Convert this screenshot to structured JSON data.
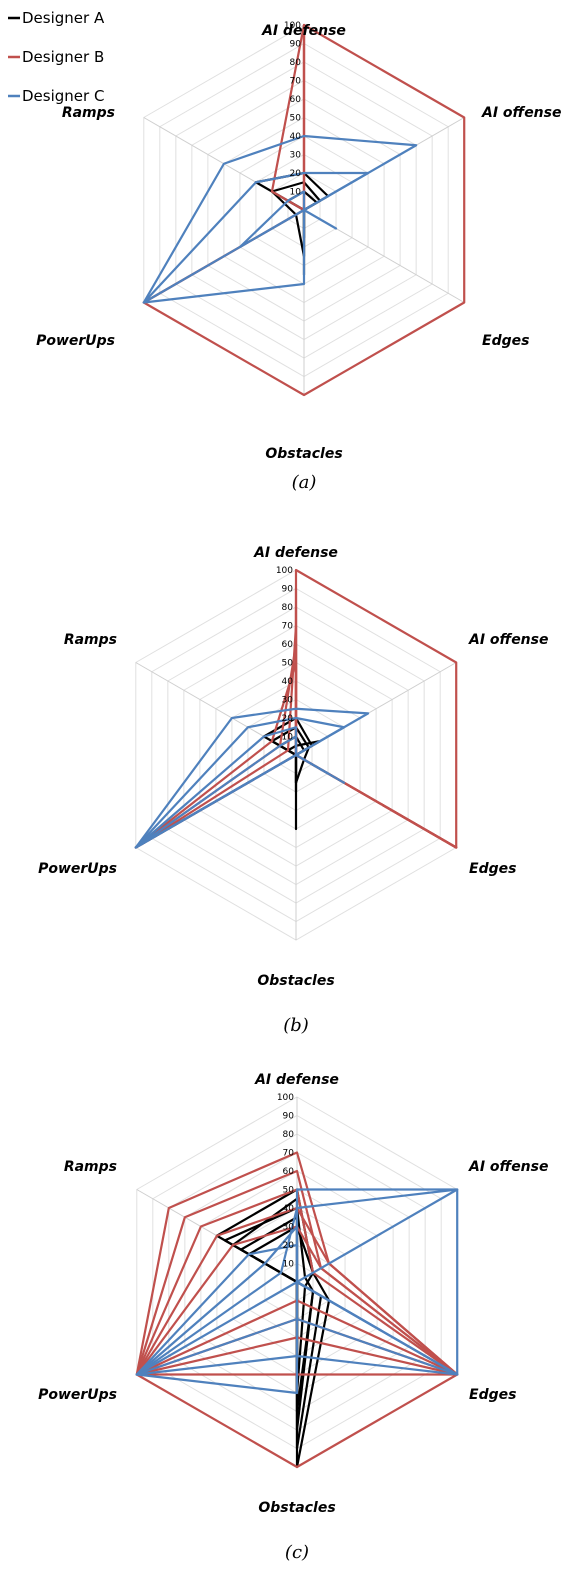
{
  "legend": [
    {
      "label": "Designer A",
      "color": "#000000"
    },
    {
      "label": "Designer B",
      "color": "#c0504d"
    },
    {
      "label": "Designer C",
      "color": "#4f81bd"
    }
  ],
  "chart_data": [
    {
      "type": "radar",
      "caption": "(a)",
      "axes": [
        "AI defense",
        "AI offense",
        "Edges",
        "Obstacles",
        "PowerUps",
        "Ramps"
      ],
      "ticks": [
        "10",
        "20",
        "30",
        "40",
        "50",
        "60",
        "70",
        "80",
        "90",
        "100"
      ],
      "range": [
        0,
        100
      ],
      "grid": true,
      "series": [
        {
          "group": "Designer A",
          "values": [
            20,
            15,
            0,
            35,
            0,
            30
          ]
        },
        {
          "group": "Designer A",
          "values": [
            15,
            10,
            0,
            25,
            5,
            20
          ]
        },
        {
          "group": "Designer A",
          "values": [
            10,
            8,
            0,
            15,
            0,
            10
          ]
        },
        {
          "group": "Designer B",
          "values": [
            100,
            100,
            100,
            100,
            100,
            0
          ]
        },
        {
          "group": "Designer B",
          "values": [
            100,
            0,
            0,
            0,
            100,
            0
          ]
        },
        {
          "group": "Designer B",
          "values": [
            100,
            0,
            0,
            0,
            0,
            20
          ]
        },
        {
          "group": "Designer C",
          "values": [
            40,
            70,
            0,
            40,
            100,
            50
          ]
        },
        {
          "group": "Designer C",
          "values": [
            20,
            40,
            0,
            0,
            100,
            30
          ]
        },
        {
          "group": "Designer C",
          "values": [
            10,
            0,
            20,
            0,
            40,
            10
          ]
        }
      ]
    },
    {
      "type": "radar",
      "caption": "(b)",
      "axes": [
        "AI defense",
        "AI offense",
        "Edges",
        "Obstacles",
        "PowerUps",
        "Ramps"
      ],
      "ticks": [
        "10",
        "20",
        "30",
        "40",
        "50",
        "60",
        "70",
        "80",
        "90",
        "100"
      ],
      "range": [
        0,
        100
      ],
      "grid": true,
      "series": [
        {
          "group": "Designer A",
          "values": [
            20,
            10,
            0,
            40,
            0,
            20
          ]
        },
        {
          "group": "Designer A",
          "values": [
            15,
            8,
            5,
            15,
            0,
            15
          ]
        },
        {
          "group": "Designer A",
          "values": [
            10,
            5,
            0,
            20,
            0,
            10
          ]
        },
        {
          "group": "Designer A",
          "values": [
            5,
            15,
            0,
            15,
            0,
            5
          ]
        },
        {
          "group": "Designer B",
          "values": [
            100,
            100,
            100,
            0,
            0,
            0
          ]
        },
        {
          "group": "Designer B",
          "values": [
            90,
            0,
            100,
            0,
            0,
            0
          ]
        },
        {
          "group": "Designer B",
          "values": [
            80,
            0,
            100,
            0,
            100,
            0
          ]
        },
        {
          "group": "Designer B",
          "values": [
            70,
            0,
            100,
            0,
            100,
            5
          ]
        },
        {
          "group": "Designer B",
          "values": [
            60,
            0,
            100,
            0,
            100,
            10
          ]
        },
        {
          "group": "Designer B",
          "values": [
            50,
            0,
            100,
            0,
            100,
            15
          ]
        },
        {
          "group": "Designer C",
          "values": [
            25,
            45,
            0,
            0,
            100,
            40
          ]
        },
        {
          "group": "Designer C",
          "values": [
            20,
            30,
            0,
            0,
            100,
            30
          ]
        },
        {
          "group": "Designer C",
          "values": [
            15,
            0,
            20,
            0,
            100,
            20
          ]
        },
        {
          "group": "Designer C",
          "values": [
            10,
            0,
            30,
            0,
            100,
            10
          ]
        }
      ]
    },
    {
      "type": "radar",
      "caption": "(c)",
      "axes": [
        "AI defense",
        "AI offense",
        "Edges",
        "Obstacles",
        "PowerUps",
        "Ramps"
      ],
      "ticks": [
        "10",
        "20",
        "30",
        "40",
        "50",
        "60",
        "70",
        "80",
        "90",
        "100"
      ],
      "range": [
        0,
        100
      ],
      "grid": true,
      "series": [
        {
          "group": "Designer A",
          "values": [
            50,
            10,
            20,
            100,
            0,
            50
          ]
        },
        {
          "group": "Designer A",
          "values": [
            45,
            0,
            15,
            90,
            0,
            40
          ]
        },
        {
          "group": "Designer A",
          "values": [
            40,
            5,
            10,
            80,
            0,
            45
          ]
        },
        {
          "group": "Designer A",
          "values": [
            35,
            0,
            10,
            70,
            0,
            35
          ]
        },
        {
          "group": "Designer A",
          "values": [
            30,
            10,
            5,
            60,
            0,
            30
          ]
        },
        {
          "group": "Designer B",
          "values": [
            70,
            20,
            100,
            100,
            100,
            80
          ]
        },
        {
          "group": "Designer B",
          "values": [
            60,
            15,
            100,
            50,
            100,
            70
          ]
        },
        {
          "group": "Designer B",
          "values": [
            50,
            10,
            100,
            30,
            100,
            60
          ]
        },
        {
          "group": "Designer B",
          "values": [
            40,
            20,
            100,
            20,
            100,
            50
          ]
        },
        {
          "group": "Designer B",
          "values": [
            30,
            15,
            100,
            10,
            100,
            40
          ]
        },
        {
          "group": "Designer C",
          "values": [
            50,
            100,
            100,
            0,
            100,
            0
          ]
        },
        {
          "group": "Designer C",
          "values": [
            40,
            100,
            0,
            60,
            100,
            10
          ]
        },
        {
          "group": "Designer C",
          "values": [
            30,
            0,
            100,
            40,
            100,
            20
          ]
        },
        {
          "group": "Designer C",
          "values": [
            20,
            0,
            100,
            20,
            100,
            30
          ]
        }
      ]
    }
  ]
}
